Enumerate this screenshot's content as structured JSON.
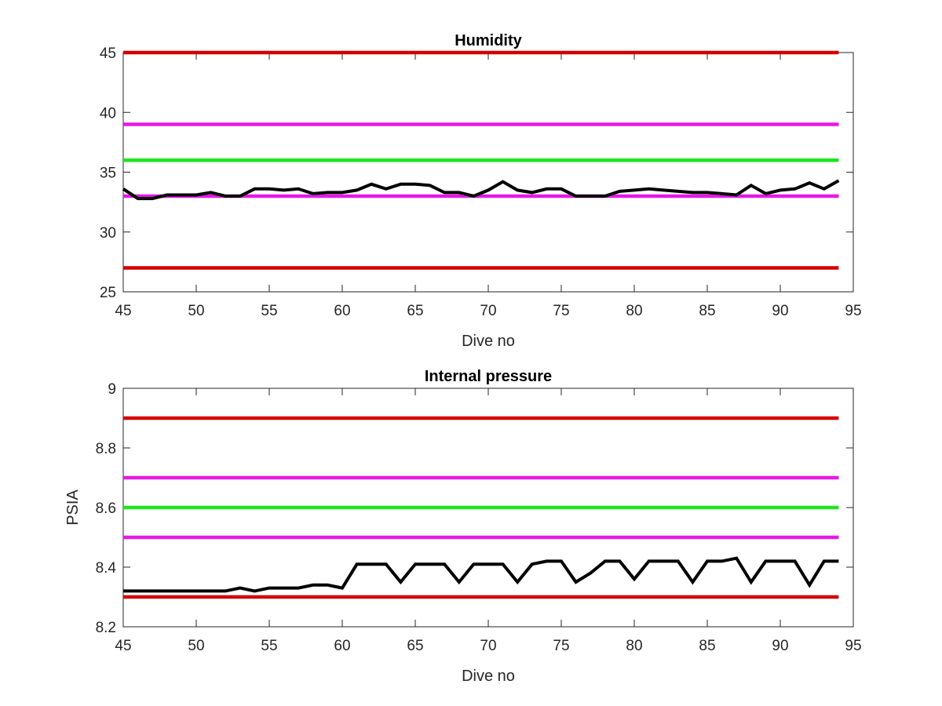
{
  "chart_data": [
    {
      "type": "line",
      "title": "Humidity",
      "xlabel": "Dive no",
      "ylabel": "",
      "xlim": [
        45,
        95
      ],
      "ylim": [
        25,
        45
      ],
      "xticks": [
        45,
        50,
        55,
        60,
        65,
        70,
        75,
        80,
        85,
        90,
        95
      ],
      "yticks": [
        25,
        30,
        35,
        40,
        45
      ],
      "grid": false,
      "threshold_lines": [
        {
          "y": 45,
          "color": "#d40000"
        },
        {
          "y": 39,
          "color": "#e619e6"
        },
        {
          "y": 36,
          "color": "#1ee61e"
        },
        {
          "y": 33,
          "color": "#e619e6"
        },
        {
          "y": 27,
          "color": "#d40000"
        }
      ],
      "series": [
        {
          "color": "#000000",
          "x": [
            45,
            46,
            47,
            48,
            49,
            50,
            51,
            52,
            53,
            54,
            55,
            56,
            57,
            58,
            59,
            60,
            61,
            62,
            63,
            64,
            65,
            66,
            67,
            68,
            69,
            70,
            71,
            72,
            73,
            74,
            75,
            76,
            77,
            78,
            79,
            80,
            81,
            82,
            83,
            84,
            85,
            86,
            87,
            88,
            89,
            90,
            91,
            92,
            93,
            94
          ],
          "y": [
            33.6,
            32.8,
            32.8,
            33.1,
            33.1,
            33.1,
            33.3,
            33.0,
            33.0,
            33.6,
            33.6,
            33.5,
            33.6,
            33.2,
            33.3,
            33.3,
            33.5,
            34.0,
            33.6,
            34.0,
            34.0,
            33.9,
            33.3,
            33.3,
            33.0,
            33.5,
            34.2,
            33.5,
            33.3,
            33.6,
            33.6,
            33.0,
            33.0,
            33.0,
            33.4,
            33.5,
            33.6,
            33.5,
            33.4,
            33.3,
            33.3,
            33.2,
            33.1,
            33.9,
            33.2,
            33.5,
            33.6,
            34.1,
            33.6,
            34.3
          ]
        }
      ]
    },
    {
      "type": "line",
      "title": "Internal pressure",
      "xlabel": "Dive no",
      "ylabel": "PSIA",
      "xlim": [
        45,
        95
      ],
      "ylim": [
        8.2,
        9.0
      ],
      "xticks": [
        45,
        50,
        55,
        60,
        65,
        70,
        75,
        80,
        85,
        90,
        95
      ],
      "yticks": [
        8.2,
        8.4,
        8.6,
        8.8,
        9.0
      ],
      "ytick_labels": [
        "8.2",
        "8.4",
        "8.6",
        "8.8",
        "9"
      ],
      "grid": false,
      "threshold_lines": [
        {
          "y": 8.9,
          "color": "#d40000"
        },
        {
          "y": 8.7,
          "color": "#e619e6"
        },
        {
          "y": 8.6,
          "color": "#1ee61e"
        },
        {
          "y": 8.5,
          "color": "#e619e6"
        },
        {
          "y": 8.3,
          "color": "#d40000"
        }
      ],
      "series": [
        {
          "color": "#000000",
          "x": [
            45,
            46,
            47,
            48,
            49,
            50,
            51,
            52,
            53,
            54,
            55,
            56,
            57,
            58,
            59,
            60,
            61,
            62,
            63,
            64,
            65,
            66,
            67,
            68,
            69,
            70,
            71,
            72,
            73,
            74,
            75,
            76,
            77,
            78,
            79,
            80,
            81,
            82,
            83,
            84,
            85,
            86,
            87,
            88,
            89,
            90,
            91,
            92,
            93,
            94
          ],
          "y": [
            8.32,
            8.32,
            8.32,
            8.32,
            8.32,
            8.32,
            8.32,
            8.32,
            8.33,
            8.32,
            8.33,
            8.33,
            8.33,
            8.34,
            8.34,
            8.33,
            8.41,
            8.41,
            8.41,
            8.35,
            8.41,
            8.41,
            8.41,
            8.35,
            8.41,
            8.41,
            8.41,
            8.35,
            8.41,
            8.42,
            8.42,
            8.35,
            8.38,
            8.42,
            8.42,
            8.36,
            8.42,
            8.42,
            8.42,
            8.35,
            8.42,
            8.42,
            8.43,
            8.35,
            8.42,
            8.42,
            8.42,
            8.34,
            8.42,
            8.42
          ]
        }
      ]
    }
  ]
}
